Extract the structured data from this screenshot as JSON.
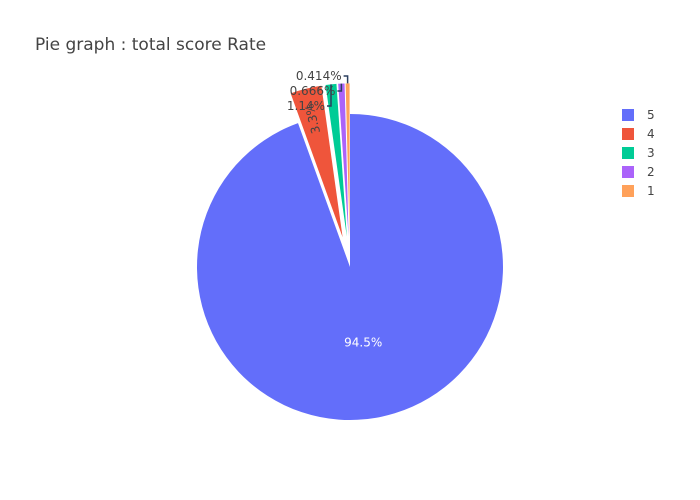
{
  "chart_data": {
    "type": "pie",
    "title": "Pie graph : total score Rate",
    "labels": [
      "5",
      "4",
      "3",
      "2",
      "1"
    ],
    "values": [
      94.5,
      3.3,
      1.14,
      0.666,
      0.414
    ],
    "value_labels": [
      "94.5%",
      "3.3%",
      "1.14%",
      "0.666%",
      "0.414%"
    ],
    "colors": [
      "#636efa",
      "#EF553B",
      "#00cc96",
      "#ab63fa",
      "#FFA15A"
    ],
    "pull": [
      0,
      0.2,
      0.2,
      0.2,
      0.2
    ],
    "direction": "clockwise",
    "legend_position": "top-right"
  }
}
